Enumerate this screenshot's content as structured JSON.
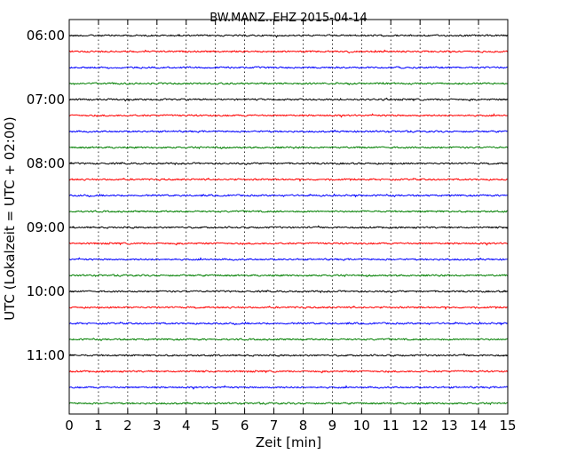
{
  "chart_data": {
    "type": "line",
    "title": "BW.MANZ..EHZ 2015-04-14",
    "xlabel": "Zeit  [min]",
    "ylabel": "UTC (Lokalzeit = UTC + 02:00)",
    "xlim": [
      0,
      15
    ],
    "x_ticks": [
      "0",
      "1",
      "2",
      "3",
      "4",
      "5",
      "6",
      "7",
      "8",
      "9",
      "10",
      "11",
      "12",
      "13",
      "14",
      "15"
    ],
    "y_ticks": [
      "06:00",
      "07:00",
      "08:00",
      "09:00",
      "10:00",
      "11:00"
    ],
    "y_tick_rows": [
      0,
      4,
      8,
      12,
      16,
      20
    ],
    "trace_interval_min": 15,
    "grid": "vertical dotted at each minute",
    "colors": [
      "#000000",
      "#ff0000",
      "#0000ff",
      "#007f00"
    ],
    "traces": [
      {
        "start": "06:00",
        "color": "#000000"
      },
      {
        "start": "06:15",
        "color": "#ff0000"
      },
      {
        "start": "06:30",
        "color": "#0000ff"
      },
      {
        "start": "06:45",
        "color": "#007f00"
      },
      {
        "start": "07:00",
        "color": "#000000"
      },
      {
        "start": "07:15",
        "color": "#ff0000"
      },
      {
        "start": "07:30",
        "color": "#0000ff"
      },
      {
        "start": "07:45",
        "color": "#007f00"
      },
      {
        "start": "08:00",
        "color": "#000000"
      },
      {
        "start": "08:15",
        "color": "#ff0000"
      },
      {
        "start": "08:30",
        "color": "#0000ff"
      },
      {
        "start": "08:45",
        "color": "#007f00"
      },
      {
        "start": "09:00",
        "color": "#000000"
      },
      {
        "start": "09:15",
        "color": "#ff0000"
      },
      {
        "start": "09:30",
        "color": "#0000ff"
      },
      {
        "start": "09:45",
        "color": "#007f00"
      },
      {
        "start": "10:00",
        "color": "#000000"
      },
      {
        "start": "10:15",
        "color": "#ff0000"
      },
      {
        "start": "10:30",
        "color": "#0000ff"
      },
      {
        "start": "10:45",
        "color": "#007f00"
      },
      {
        "start": "11:00",
        "color": "#000000"
      },
      {
        "start": "11:15",
        "color": "#ff0000"
      },
      {
        "start": "11:30",
        "color": "#0000ff"
      },
      {
        "start": "11:45",
        "color": "#007f00"
      }
    ]
  }
}
